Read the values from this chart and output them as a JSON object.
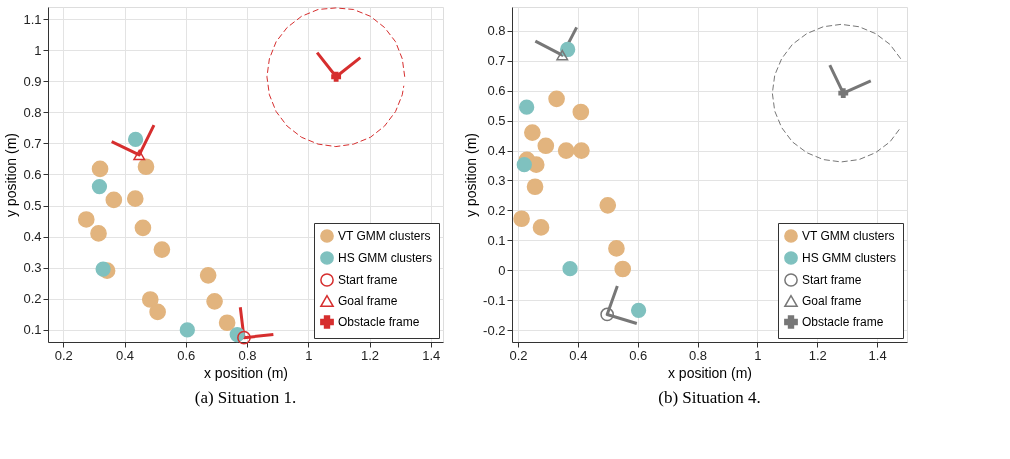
{
  "chart_data": [
    {
      "type": "scatter",
      "title": "(a) Situation 1.",
      "xlabel": "x position (m)",
      "ylabel": "y position (m)",
      "xlim": [
        0.15,
        1.44
      ],
      "ylim": [
        0.06,
        1.14
      ],
      "xticks": [
        0.2,
        0.4,
        0.6,
        0.8,
        1,
        1.2,
        1.4
      ],
      "yticks": [
        0.1,
        0.2,
        0.3,
        0.4,
        0.5,
        0.6,
        0.7,
        0.8,
        0.9,
        1,
        1.1
      ],
      "grid": true,
      "legend": "bottom right",
      "series": [
        {
          "type": "line",
          "color": "#d62e2e",
          "x": [
            0.778,
            0.79,
            0.886
          ],
          "values": [
            0.172,
            0.074,
            0.084
          ]
        },
        {
          "type": "line",
          "color": "#d62e2e",
          "x": [
            0.358,
            0.448,
            0.496
          ],
          "values": [
            0.706,
            0.663,
            0.759
          ]
        },
        {
          "type": "line",
          "color": "#d62e2e",
          "x": [
            1.029,
            1.091,
            1.17
          ],
          "values": [
            0.993,
            0.915,
            0.977
          ]
        },
        {
          "type": "line",
          "color": "#d62e2e",
          "line_style": "dashed",
          "x": [
            1.315,
            1.307,
            1.285,
            1.249,
            1.203,
            1.148,
            1.09,
            1.032,
            0.978,
            0.931,
            0.895,
            0.873,
            0.865,
            0.873,
            0.895,
            0.931,
            0.978,
            1.032,
            1.09,
            1.148,
            1.203,
            1.249,
            1.285,
            1.307,
            1.312
          ],
          "values": [
            0.915,
            0.973,
            1.028,
            1.074,
            1.11,
            1.132,
            1.137,
            1.132,
            1.11,
            1.074,
            1.028,
            0.973,
            0.915,
            0.857,
            0.803,
            0.756,
            0.72,
            0.698,
            0.69,
            0.698,
            0.72,
            0.756,
            0.803,
            0.857,
            0.886
          ]
        },
        {
          "name": "VT GMM clusters",
          "color": "#e2b47e",
          "x": [
            0.47,
            0.32,
            0.365,
            0.435,
            0.275,
            0.315,
            0.46,
            0.522,
            0.343,
            0.484,
            0.508,
            0.673,
            0.694,
            0.735
          ],
          "values": [
            0.625,
            0.618,
            0.518,
            0.522,
            0.455,
            0.41,
            0.428,
            0.358,
            0.29,
            0.197,
            0.157,
            0.275,
            0.191,
            0.122
          ]
        },
        {
          "name": "HS GMM clusters",
          "color": "#7fc1bf",
          "x": [
            0.436,
            0.318,
            0.33,
            0.605,
            0.768
          ],
          "values": [
            0.713,
            0.561,
            0.295,
            0.099,
            0.084
          ]
        },
        {
          "name": "Start frame",
          "color": "#d62e2e",
          "marker": "circle",
          "x": [
            0.79
          ],
          "values": [
            0.074
          ]
        },
        {
          "name": "Goal frame",
          "color": "#d62e2e",
          "marker": "triangle",
          "x": [
            0.448
          ],
          "values": [
            0.663
          ]
        },
        {
          "name": "Obstacle frame",
          "color": "#d62e2e",
          "marker": "cross",
          "x": [
            1.091
          ],
          "values": [
            0.915
          ]
        }
      ]
    },
    {
      "type": "scatter",
      "title": "(b) Situation 4.",
      "xlabel": "x position (m)",
      "ylabel": "y position (m)",
      "xlim": [
        0.18,
        1.5
      ],
      "ylim": [
        -0.24,
        0.88
      ],
      "xticks": [
        0.2,
        0.4,
        0.6,
        0.8,
        1,
        1.2,
        1.4
      ],
      "yticks": [
        -0.2,
        -0.1,
        0,
        0.1,
        0.2,
        0.3,
        0.4,
        0.5,
        0.6,
        0.7,
        0.8
      ],
      "grid": true,
      "legend": "bottom right",
      "series": [
        {
          "type": "line",
          "color": "#777777",
          "x": [
            0.532,
            0.498,
            0.597
          ],
          "values": [
            -0.053,
            -0.148,
            -0.178
          ]
        },
        {
          "type": "line",
          "color": "#777777",
          "x": [
            0.258,
            0.348,
            0.396
          ],
          "values": [
            0.766,
            0.719,
            0.812
          ]
        },
        {
          "type": "line",
          "color": "#777777",
          "x": [
            1.242,
            1.287,
            1.379
          ],
          "values": [
            0.686,
            0.592,
            0.633
          ]
        },
        {
          "type": "line",
          "color": "#777777",
          "line_style": "dashed",
          "x": [
            1.479,
            1.443,
            1.395,
            1.34,
            1.28,
            1.22,
            1.165,
            1.117,
            1.081,
            1.058,
            1.05,
            1.058,
            1.081,
            1.117,
            1.165,
            1.22,
            1.28,
            1.34,
            1.395,
            1.443,
            1.479
          ],
          "values": [
            0.707,
            0.755,
            0.791,
            0.814,
            0.822,
            0.814,
            0.791,
            0.755,
            0.707,
            0.652,
            0.592,
            0.532,
            0.477,
            0.429,
            0.393,
            0.37,
            0.362,
            0.37,
            0.393,
            0.429,
            0.477
          ]
        },
        {
          "name": "VT GMM clusters",
          "color": "#e2b47e",
          "x": [
            0.329,
            0.41,
            0.248,
            0.293,
            0.361,
            0.412,
            0.23,
            0.261,
            0.257,
            0.5,
            0.212,
            0.277,
            0.529,
            0.55
          ],
          "values": [
            0.573,
            0.529,
            0.46,
            0.416,
            0.4,
            0.4,
            0.369,
            0.353,
            0.279,
            0.217,
            0.172,
            0.143,
            0.073,
            0.004
          ]
        },
        {
          "name": "HS GMM clusters",
          "color": "#7fc1bf",
          "x": [
            0.366,
            0.229,
            0.221,
            0.374,
            0.603
          ],
          "values": [
            0.738,
            0.545,
            0.353,
            0.005,
            -0.134
          ]
        },
        {
          "name": "Start frame",
          "color": "#777777",
          "marker": "circle",
          "x": [
            0.498
          ],
          "values": [
            -0.148
          ]
        },
        {
          "name": "Goal frame",
          "color": "#777777",
          "marker": "triangle",
          "x": [
            0.348
          ],
          "values": [
            0.719
          ]
        },
        {
          "name": "Obstacle frame",
          "color": "#777777",
          "marker": "cross",
          "x": [
            1.287
          ],
          "values": [
            0.592
          ]
        }
      ]
    }
  ]
}
